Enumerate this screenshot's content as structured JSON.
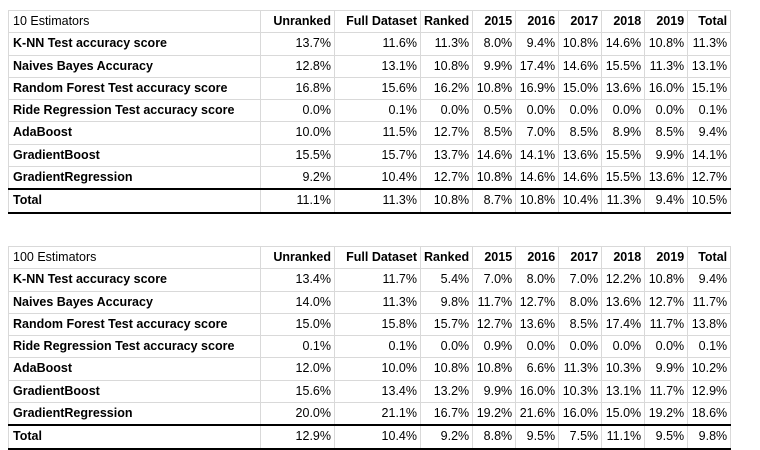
{
  "tables": [
    {
      "title": "10 Estimators",
      "headers": [
        "Unranked",
        "Full Dataset",
        "Ranked",
        "2015",
        "2016",
        "2017",
        "2018",
        "2019",
        "Total"
      ],
      "rows": [
        {
          "label": "K-NN Test accuracy score",
          "values": [
            "13.7%",
            "11.6%",
            "11.3%",
            "8.0%",
            "9.4%",
            "10.8%",
            "14.6%",
            "10.8%",
            "11.3%"
          ]
        },
        {
          "label": "Naives Bayes Accuracy",
          "values": [
            "12.8%",
            "13.1%",
            "10.8%",
            "9.9%",
            "17.4%",
            "14.6%",
            "15.5%",
            "11.3%",
            "13.1%"
          ]
        },
        {
          "label": "Random Forest Test accuracy score",
          "values": [
            "16.8%",
            "15.6%",
            "16.2%",
            "10.8%",
            "16.9%",
            "15.0%",
            "13.6%",
            "16.0%",
            "15.1%"
          ]
        },
        {
          "label": "Ride Regression Test accuracy score",
          "values": [
            "0.0%",
            "0.1%",
            "0.0%",
            "0.5%",
            "0.0%",
            "0.0%",
            "0.0%",
            "0.0%",
            "0.1%"
          ]
        },
        {
          "label": "AdaBoost",
          "values": [
            "10.0%",
            "11.5%",
            "12.7%",
            "8.5%",
            "7.0%",
            "8.5%",
            "8.9%",
            "8.5%",
            "9.4%"
          ]
        },
        {
          "label": "GradientBoost",
          "values": [
            "15.5%",
            "15.7%",
            "13.7%",
            "14.6%",
            "14.1%",
            "13.6%",
            "15.5%",
            "9.9%",
            "14.1%"
          ]
        },
        {
          "label": "GradientRegression",
          "values": [
            "9.2%",
            "10.4%",
            "12.7%",
            "10.8%",
            "14.6%",
            "14.6%",
            "15.5%",
            "13.6%",
            "12.7%"
          ]
        }
      ],
      "total": {
        "label": "Total",
        "values": [
          "11.1%",
          "11.3%",
          "10.8%",
          "8.7%",
          "10.8%",
          "10.4%",
          "11.3%",
          "9.4%",
          "10.5%"
        ]
      }
    },
    {
      "title": "100 Estimators",
      "headers": [
        "Unranked",
        "Full Dataset",
        "Ranked",
        "2015",
        "2016",
        "2017",
        "2018",
        "2019",
        "Total"
      ],
      "rows": [
        {
          "label": "K-NN Test accuracy score",
          "values": [
            "13.4%",
            "11.7%",
            "5.4%",
            "7.0%",
            "8.0%",
            "7.0%",
            "12.2%",
            "10.8%",
            "9.4%"
          ]
        },
        {
          "label": "Naives Bayes Accuracy",
          "values": [
            "14.0%",
            "11.3%",
            "9.8%",
            "11.7%",
            "12.7%",
            "8.0%",
            "13.6%",
            "12.7%",
            "11.7%"
          ]
        },
        {
          "label": "Random Forest Test accuracy score",
          "values": [
            "15.0%",
            "15.8%",
            "15.7%",
            "12.7%",
            "13.6%",
            "8.5%",
            "17.4%",
            "11.7%",
            "13.8%"
          ]
        },
        {
          "label": "Ride Regression Test accuracy score",
          "values": [
            "0.1%",
            "0.1%",
            "0.0%",
            "0.9%",
            "0.0%",
            "0.0%",
            "0.0%",
            "0.0%",
            "0.1%"
          ]
        },
        {
          "label": "AdaBoost",
          "values": [
            "12.0%",
            "10.0%",
            "10.8%",
            "10.8%",
            "6.6%",
            "11.3%",
            "10.3%",
            "9.9%",
            "10.2%"
          ]
        },
        {
          "label": "GradientBoost",
          "values": [
            "15.6%",
            "13.4%",
            "13.2%",
            "9.9%",
            "16.0%",
            "10.3%",
            "13.1%",
            "11.7%",
            "12.9%"
          ]
        },
        {
          "label": "GradientRegression",
          "values": [
            "20.0%",
            "21.1%",
            "16.7%",
            "19.2%",
            "21.6%",
            "16.0%",
            "15.0%",
            "19.2%",
            "18.6%"
          ]
        }
      ],
      "total": {
        "label": "Total",
        "values": [
          "12.9%",
          "10.4%",
          "9.2%",
          "8.8%",
          "9.5%",
          "7.5%",
          "11.1%",
          "9.5%",
          "9.8%"
        ]
      }
    }
  ]
}
